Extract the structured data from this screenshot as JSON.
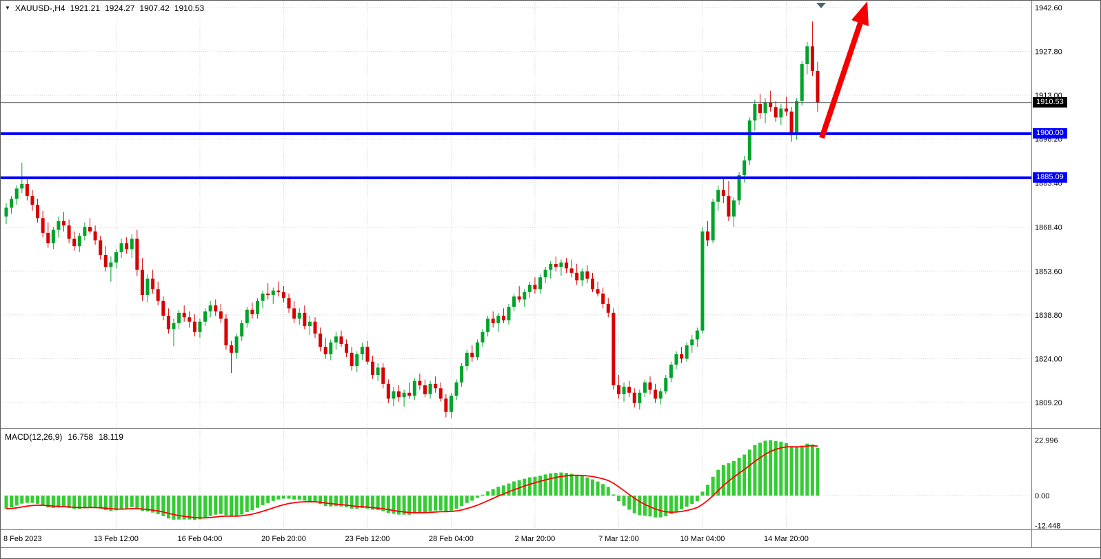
{
  "header": {
    "symbol_period": "XAUUSD-,H4",
    "open": "1921.21",
    "high": "1924.27",
    "low": "1907.42",
    "close": "1910.53"
  },
  "macd": {
    "label": "MACD(12,26,9)",
    "main_value": "16.758",
    "signal_value": "18.119",
    "axis": [
      {
        "text": "22.996",
        "v": 22.996
      },
      {
        "text": "0.00",
        "v": 0
      },
      {
        "text": "-12.448",
        "v": -12.448
      }
    ]
  },
  "price_axis": {
    "labels": [
      {
        "text": "1942.60",
        "price": 1942.6
      },
      {
        "text": "1927.80",
        "price": 1927.8
      },
      {
        "text": "1913.00",
        "price": 1913.0
      },
      {
        "text": "1898.20",
        "price": 1898.2
      },
      {
        "text": "1883.40",
        "price": 1883.4
      },
      {
        "text": "1868.40",
        "price": 1868.4
      },
      {
        "text": "1853.60",
        "price": 1853.6
      },
      {
        "text": "1838.80",
        "price": 1838.8
      },
      {
        "text": "1824.00",
        "price": 1824.0
      },
      {
        "text": "1809.20",
        "price": 1809.2
      }
    ],
    "current": {
      "text": "1910.53",
      "price": 1910.53
    }
  },
  "hlines": [
    {
      "text": "1900.00",
      "price": 1900.0
    },
    {
      "text": "1885.09",
      "price": 1885.09
    }
  ],
  "colors": {
    "bull": "#00a32a",
    "bear": "#d80000",
    "histogram": "#33cc33",
    "signal": "#ff0000",
    "hline": "#0000ff",
    "arrow": "#f40000",
    "grid": "#d4d4d4",
    "separator": "#808080",
    "bid_line": "#4d4d4d",
    "badge_current_bg": "#000000",
    "marker": "#4f6570",
    "text": "#000000"
  },
  "chart_data": {
    "type": "candlestick",
    "title": "XAUUSD-,H4",
    "symbol": "XAUUSD",
    "timeframe": "H4",
    "ylim": [
      1803,
      1944
    ],
    "x_labels": [
      {
        "text": "8 Feb 2023",
        "ci": 0
      },
      {
        "text": "13 Feb 12:00",
        "ci": 21
      },
      {
        "text": "16 Feb 04:00",
        "ci": 37
      },
      {
        "text": "20 Feb 20:00",
        "ci": 53
      },
      {
        "text": "23 Feb 12:00",
        "ci": 69
      },
      {
        "text": "28 Feb 04:00",
        "ci": 85
      },
      {
        "text": "2 Mar 20:00",
        "ci": 101
      },
      {
        "text": "7 Mar 12:00",
        "ci": 117
      },
      {
        "text": "10 Mar 04:00",
        "ci": 133
      },
      {
        "text": "14 Mar 20:00",
        "ci": 149
      }
    ],
    "overlays": [
      {
        "type": "hline",
        "price": 1900.0,
        "label": "1900.00"
      },
      {
        "type": "hline",
        "price": 1885.09,
        "label": "1885.09"
      },
      {
        "type": "arrow",
        "direction": "up",
        "note": "red projection arrow from 1900 level off top of chart"
      }
    ],
    "indicator": {
      "type": "MACD",
      "params": [
        12,
        26,
        9
      ],
      "last_main": 16.758,
      "last_signal": 18.119,
      "axis_range": [
        -12.448,
        22.996
      ]
    },
    "ohlc": [
      [
        1872.0,
        1876.5,
        1869.5,
        1875.0
      ],
      [
        1875.0,
        1879.0,
        1873.0,
        1878.0
      ],
      [
        1878.0,
        1882.5,
        1876.0,
        1881.5
      ],
      [
        1881.5,
        1890.2,
        1880.0,
        1883.0
      ],
      [
        1883.0,
        1885.0,
        1877.5,
        1879.0
      ],
      [
        1879.0,
        1881.0,
        1874.0,
        1876.0
      ],
      [
        1876.0,
        1878.0,
        1870.0,
        1871.5
      ],
      [
        1871.5,
        1874.0,
        1865.0,
        1866.5
      ],
      [
        1866.5,
        1870.0,
        1861.5,
        1863.0
      ],
      [
        1863.0,
        1868.5,
        1861.0,
        1867.5
      ],
      [
        1867.5,
        1872.0,
        1865.0,
        1870.5
      ],
      [
        1870.5,
        1873.5,
        1867.0,
        1869.0
      ],
      [
        1869.0,
        1871.0,
        1863.0,
        1864.5
      ],
      [
        1864.5,
        1867.0,
        1860.5,
        1862.0
      ],
      [
        1862.0,
        1866.5,
        1860.0,
        1865.5
      ],
      [
        1865.5,
        1870.0,
        1864.0,
        1868.5
      ],
      [
        1868.5,
        1871.5,
        1866.0,
        1867.0
      ],
      [
        1867.0,
        1869.0,
        1862.5,
        1864.0
      ],
      [
        1864.0,
        1865.5,
        1857.5,
        1859.0
      ],
      [
        1859.0,
        1862.0,
        1853.5,
        1855.0
      ],
      [
        1855.0,
        1858.5,
        1850.0,
        1856.5
      ],
      [
        1856.5,
        1861.0,
        1854.5,
        1860.0
      ],
      [
        1860.0,
        1864.5,
        1858.0,
        1863.0
      ],
      [
        1863.0,
        1865.0,
        1859.5,
        1861.0
      ],
      [
        1861.0,
        1866.0,
        1858.0,
        1864.5
      ],
      [
        1864.5,
        1867.5,
        1852.0,
        1854.0
      ],
      [
        1854.0,
        1858.0,
        1843.5,
        1845.5
      ],
      [
        1845.5,
        1852.5,
        1843.0,
        1851.0
      ],
      [
        1851.0,
        1854.0,
        1846.0,
        1847.5
      ],
      [
        1847.5,
        1850.0,
        1842.0,
        1843.5
      ],
      [
        1843.5,
        1845.0,
        1837.0,
        1838.5
      ],
      [
        1838.5,
        1841.0,
        1832.5,
        1834.0
      ],
      [
        1834.0,
        1837.5,
        1828.2,
        1836.0
      ],
      [
        1836.0,
        1840.5,
        1834.0,
        1839.5
      ],
      [
        1839.5,
        1842.0,
        1836.5,
        1838.0
      ],
      [
        1838.0,
        1840.0,
        1834.5,
        1836.5
      ],
      [
        1836.5,
        1839.0,
        1831.5,
        1833.0
      ],
      [
        1833.0,
        1837.5,
        1831.0,
        1836.5
      ],
      [
        1836.5,
        1841.0,
        1835.0,
        1840.0
      ],
      [
        1840.0,
        1843.5,
        1838.0,
        1842.0
      ],
      [
        1842.0,
        1844.0,
        1838.5,
        1840.0
      ],
      [
        1840.0,
        1842.5,
        1836.0,
        1837.5
      ],
      [
        1837.5,
        1839.0,
        1827.0,
        1828.5
      ],
      [
        1828.5,
        1830.0,
        1819.2,
        1826.0
      ],
      [
        1826.0,
        1832.5,
        1824.0,
        1831.5
      ],
      [
        1831.5,
        1837.0,
        1830.0,
        1836.0
      ],
      [
        1836.0,
        1841.5,
        1834.5,
        1840.5
      ],
      [
        1840.5,
        1843.0,
        1837.5,
        1839.0
      ],
      [
        1839.0,
        1844.5,
        1837.5,
        1843.5
      ],
      [
        1843.5,
        1847.0,
        1841.0,
        1846.0
      ],
      [
        1846.0,
        1849.5,
        1844.0,
        1845.5
      ],
      [
        1845.5,
        1848.0,
        1842.5,
        1847.0
      ],
      [
        1847.0,
        1850.0,
        1845.0,
        1846.5
      ],
      [
        1846.5,
        1848.5,
        1843.0,
        1844.5
      ],
      [
        1844.5,
        1846.0,
        1839.5,
        1841.0
      ],
      [
        1841.0,
        1843.5,
        1836.0,
        1837.5
      ],
      [
        1837.5,
        1841.0,
        1835.5,
        1839.5
      ],
      [
        1839.5,
        1842.0,
        1834.0,
        1835.0
      ],
      [
        1835.0,
        1838.5,
        1832.0,
        1836.5
      ],
      [
        1836.5,
        1838.0,
        1831.0,
        1832.5
      ],
      [
        1832.5,
        1834.5,
        1826.5,
        1828.0
      ],
      [
        1828.0,
        1831.0,
        1824.0,
        1825.5
      ],
      [
        1825.5,
        1830.5,
        1823.5,
        1829.5
      ],
      [
        1829.5,
        1833.0,
        1827.0,
        1831.5
      ],
      [
        1831.5,
        1833.5,
        1828.0,
        1829.0
      ],
      [
        1829.0,
        1830.5,
        1824.5,
        1826.0
      ],
      [
        1826.0,
        1828.0,
        1820.0,
        1821.5
      ],
      [
        1821.5,
        1826.5,
        1819.5,
        1825.5
      ],
      [
        1825.5,
        1829.5,
        1823.5,
        1828.0
      ],
      [
        1828.0,
        1830.0,
        1822.0,
        1823.0
      ],
      [
        1823.0,
        1825.0,
        1817.2,
        1818.5
      ],
      [
        1818.5,
        1822.5,
        1816.5,
        1821.0
      ],
      [
        1821.0,
        1822.5,
        1814.0,
        1815.5
      ],
      [
        1815.5,
        1817.0,
        1809.0,
        1810.5
      ],
      [
        1810.5,
        1814.5,
        1808.0,
        1813.0
      ],
      [
        1813.0,
        1815.0,
        1809.5,
        1811.0
      ],
      [
        1811.0,
        1813.5,
        1807.8,
        1812.5
      ],
      [
        1812.5,
        1816.0,
        1810.5,
        1811.5
      ],
      [
        1811.5,
        1817.5,
        1810.0,
        1816.5
      ],
      [
        1816.5,
        1819.0,
        1813.5,
        1815.0
      ],
      [
        1815.0,
        1817.0,
        1811.0,
        1812.0
      ],
      [
        1812.0,
        1816.5,
        1810.5,
        1815.5
      ],
      [
        1815.5,
        1818.0,
        1812.5,
        1814.0
      ],
      [
        1814.0,
        1816.0,
        1809.5,
        1810.5
      ],
      [
        1810.5,
        1812.0,
        1804.2,
        1806.0
      ],
      [
        1806.0,
        1812.5,
        1803.8,
        1811.5
      ],
      [
        1811.5,
        1817.0,
        1810.0,
        1816.0
      ],
      [
        1816.0,
        1822.5,
        1814.5,
        1821.5
      ],
      [
        1821.5,
        1827.0,
        1820.0,
        1826.0
      ],
      [
        1826.0,
        1828.5,
        1823.0,
        1824.5
      ],
      [
        1824.5,
        1830.5,
        1823.5,
        1829.5
      ],
      [
        1829.5,
        1834.0,
        1828.0,
        1833.0
      ],
      [
        1833.0,
        1838.5,
        1831.5,
        1837.5
      ],
      [
        1837.5,
        1840.0,
        1834.5,
        1836.0
      ],
      [
        1836.0,
        1839.5,
        1833.0,
        1838.5
      ],
      [
        1838.5,
        1841.0,
        1836.0,
        1837.0
      ],
      [
        1837.0,
        1842.5,
        1835.5,
        1841.5
      ],
      [
        1841.5,
        1846.0,
        1840.0,
        1845.0
      ],
      [
        1845.0,
        1848.5,
        1843.0,
        1844.0
      ],
      [
        1844.0,
        1847.5,
        1841.5,
        1846.5
      ],
      [
        1846.5,
        1850.0,
        1844.5,
        1849.0
      ],
      [
        1849.0,
        1851.5,
        1846.0,
        1847.5
      ],
      [
        1847.5,
        1852.5,
        1846.0,
        1851.5
      ],
      [
        1851.5,
        1855.0,
        1849.5,
        1854.0
      ],
      [
        1854.0,
        1857.0,
        1851.0,
        1856.0
      ],
      [
        1856.0,
        1858.5,
        1853.5,
        1855.0
      ],
      [
        1855.0,
        1857.5,
        1852.0,
        1856.5
      ],
      [
        1856.5,
        1858.0,
        1853.0,
        1854.5
      ],
      [
        1854.5,
        1857.5,
        1851.5,
        1853.0
      ],
      [
        1853.0,
        1856.0,
        1849.0,
        1850.5
      ],
      [
        1850.5,
        1854.5,
        1848.5,
        1853.5
      ],
      [
        1853.5,
        1855.5,
        1849.5,
        1851.0
      ],
      [
        1851.0,
        1853.0,
        1846.5,
        1847.5
      ],
      [
        1847.5,
        1850.0,
        1845.0,
        1846.0
      ],
      [
        1846.0,
        1848.0,
        1841.0,
        1842.5
      ],
      [
        1842.5,
        1844.5,
        1838.0,
        1839.5
      ],
      [
        1839.5,
        1841.0,
        1813.5,
        1815.0
      ],
      [
        1815.0,
        1818.5,
        1810.5,
        1812.0
      ],
      [
        1812.0,
        1816.0,
        1809.5,
        1814.5
      ],
      [
        1814.5,
        1816.5,
        1811.0,
        1812.5
      ],
      [
        1812.5,
        1814.0,
        1807.5,
        1809.0
      ],
      [
        1809.0,
        1813.5,
        1806.8,
        1812.5
      ],
      [
        1812.5,
        1817.0,
        1811.0,
        1816.0
      ],
      [
        1816.0,
        1818.0,
        1812.0,
        1813.5
      ],
      [
        1813.5,
        1815.5,
        1809.0,
        1810.5
      ],
      [
        1810.5,
        1814.0,
        1808.5,
        1813.0
      ],
      [
        1813.0,
        1818.5,
        1812.0,
        1817.5
      ],
      [
        1817.5,
        1823.0,
        1816.0,
        1822.0
      ],
      [
        1822.0,
        1826.5,
        1820.5,
        1825.5
      ],
      [
        1825.5,
        1828.0,
        1822.5,
        1824.0
      ],
      [
        1824.0,
        1829.5,
        1823.0,
        1828.5
      ],
      [
        1828.5,
        1832.0,
        1826.0,
        1830.5
      ],
      [
        1830.5,
        1834.5,
        1828.0,
        1833.5
      ],
      [
        1833.5,
        1868.5,
        1832.5,
        1867.0
      ],
      [
        1867.0,
        1870.5,
        1862.0,
        1864.0
      ],
      [
        1864.0,
        1878.0,
        1863.0,
        1877.0
      ],
      [
        1877.0,
        1882.5,
        1874.0,
        1881.0
      ],
      [
        1881.0,
        1885.5,
        1876.5,
        1879.0
      ],
      [
        1879.0,
        1884.0,
        1870.5,
        1872.0
      ],
      [
        1872.0,
        1878.5,
        1868.5,
        1877.5
      ],
      [
        1877.5,
        1887.0,
        1876.0,
        1886.0
      ],
      [
        1886.0,
        1892.5,
        1883.5,
        1891.0
      ],
      [
        1891.0,
        1905.5,
        1889.5,
        1904.5
      ],
      [
        1904.5,
        1911.5,
        1901.0,
        1910.0
      ],
      [
        1910.0,
        1913.5,
        1905.0,
        1907.0
      ],
      [
        1907.0,
        1912.0,
        1903.5,
        1910.5
      ],
      [
        1910.5,
        1914.5,
        1907.5,
        1909.0
      ],
      [
        1909.0,
        1911.0,
        1904.0,
        1905.5
      ],
      [
        1905.5,
        1910.0,
        1903.0,
        1908.5
      ],
      [
        1908.5,
        1912.5,
        1906.0,
        1907.5
      ],
      [
        1907.5,
        1909.0,
        1897.3,
        1899.5
      ],
      [
        1899.5,
        1912.0,
        1898.0,
        1911.0
      ],
      [
        1911.0,
        1924.5,
        1909.5,
        1923.5
      ],
      [
        1923.5,
        1931.0,
        1920.0,
        1929.5
      ],
      [
        1929.5,
        1937.9,
        1919.5,
        1921.2
      ],
      [
        1921.2,
        1924.3,
        1907.4,
        1910.5
      ]
    ]
  }
}
